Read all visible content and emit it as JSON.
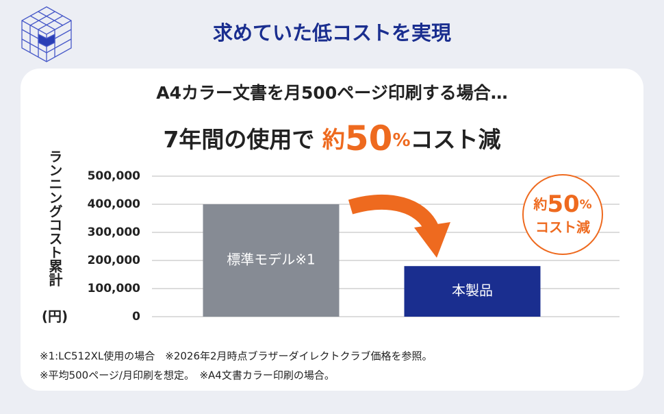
{
  "header": {
    "title": "求めていた低コストを実現"
  },
  "chart_data": {
    "type": "bar",
    "title": "A4カラー文書を月500ページ印刷する場合…",
    "subtitle_parts": [
      "7年間の使用で ",
      "約",
      "50",
      "%",
      "コスト減"
    ],
    "ylabel": "ランニングコスト累計",
    "ylabel_unit": "(円)",
    "categories": [
      "標準モデル※1",
      "本製品"
    ],
    "values": [
      400000,
      180000
    ],
    "colors": [
      "#868b94",
      "#1a2e8f"
    ],
    "ylim": [
      0,
      500000
    ],
    "yticks": [
      0,
      {
        "value": 100000,
        "label": "100,000"
      },
      {
        "value": 200000,
        "label": "200,000"
      },
      {
        "value": 300000,
        "label": "300,000"
      },
      {
        "value": 400000,
        "label": "400,000"
      },
      {
        "value": 500000,
        "label": "500,000"
      }
    ],
    "grid": true,
    "badge_parts": [
      "約",
      "50",
      "%",
      "コスト減"
    ],
    "notes": [
      "※1:LC512XL使用の場合　※2026年2月時点ブラザーダイレクトクラブ価格を参照。",
      "※平均500ページ/月印刷を想定。　※A4文書カラー印刷の場合。"
    ]
  }
}
